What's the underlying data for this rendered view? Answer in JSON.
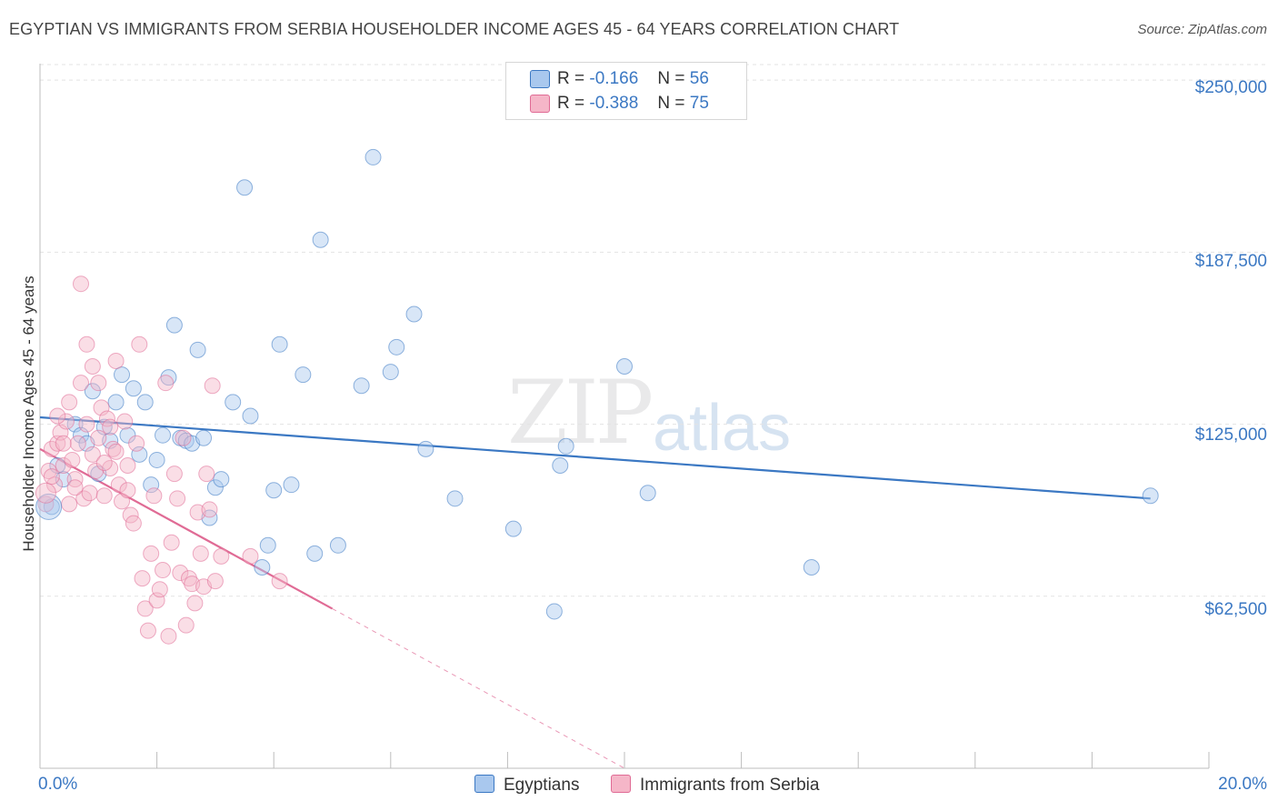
{
  "header": {
    "title": "EGYPTIAN VS IMMIGRANTS FROM SERBIA HOUSEHOLDER INCOME AGES 45 - 64 YEARS CORRELATION CHART",
    "source": "Source: ZipAtlas.com"
  },
  "watermark": {
    "zip": "ZIP",
    "atlas": "atlas"
  },
  "legend": {
    "rows": [
      {
        "r_label": "R =",
        "r_value": "-0.166",
        "n_label": "N =",
        "n_value": "56",
        "color": "#a9c8ee"
      },
      {
        "r_label": "R =",
        "r_value": "-0.388",
        "n_label": "N =",
        "n_value": "75",
        "color": "#f5b6c8"
      }
    ]
  },
  "bottom_legend": [
    {
      "label": "Egyptians",
      "color": "#a9c8ee"
    },
    {
      "label": "Immigrants from Serbia",
      "color": "#f5b6c8"
    }
  ],
  "axes": {
    "ylabel": "Householder Income Ages 45 - 64 years",
    "y_ticks": [
      "$250,000",
      "$187,500",
      "$125,000",
      "$62,500"
    ],
    "x_tick_left": "0.0%",
    "x_tick_right": "20.0%"
  },
  "chart_data": {
    "type": "scatter",
    "title": "EGYPTIAN VS IMMIGRANTS FROM SERBIA HOUSEHOLDER INCOME AGES 45 - 64 YEARS CORRELATION CHART",
    "xlabel": "",
    "ylabel": "Householder Income Ages 45 - 64 years",
    "xlim": [
      0,
      20
    ],
    "ylim": [
      0,
      256000
    ],
    "y_tick_values": [
      250000,
      187500,
      125000,
      62500
    ],
    "grid": true,
    "series": [
      {
        "name": "Egyptians",
        "color": "#3b78c3",
        "fill": "#a9c8ee",
        "R": -0.166,
        "N": 56,
        "trend": {
          "x": [
            0.0,
            19.0
          ],
          "y": [
            127500,
            98000
          ],
          "dashed_extension": false
        },
        "points": [
          [
            0.2,
            95000
          ],
          [
            0.4,
            105000
          ],
          [
            0.6,
            125000
          ],
          [
            0.7,
            121000
          ],
          [
            0.8,
            118000
          ],
          [
            0.9,
            137000
          ],
          [
            1.0,
            107000
          ],
          [
            1.1,
            124000
          ],
          [
            1.3,
            133000
          ],
          [
            1.4,
            143000
          ],
          [
            1.5,
            121000
          ],
          [
            1.6,
            138000
          ],
          [
            1.7,
            114000
          ],
          [
            1.8,
            133000
          ],
          [
            1.9,
            103000
          ],
          [
            2.0,
            112000
          ],
          [
            2.2,
            142000
          ],
          [
            2.3,
            161000
          ],
          [
            2.4,
            120000
          ],
          [
            2.5,
            119000
          ],
          [
            2.6,
            118000
          ],
          [
            2.7,
            152000
          ],
          [
            2.8,
            120000
          ],
          [
            2.9,
            91000
          ],
          [
            3.0,
            102000
          ],
          [
            3.1,
            105000
          ],
          [
            3.3,
            133000
          ],
          [
            3.5,
            211000
          ],
          [
            3.6,
            128000
          ],
          [
            3.8,
            73000
          ],
          [
            3.9,
            81000
          ],
          [
            4.0,
            101000
          ],
          [
            4.1,
            154000
          ],
          [
            4.3,
            103000
          ],
          [
            4.5,
            143000
          ],
          [
            4.7,
            78000
          ],
          [
            4.8,
            192000
          ],
          [
            5.1,
            81000
          ],
          [
            5.5,
            139000
          ],
          [
            5.7,
            222000
          ],
          [
            6.0,
            144000
          ],
          [
            6.1,
            153000
          ],
          [
            6.4,
            165000
          ],
          [
            6.6,
            116000
          ],
          [
            7.1,
            98000
          ],
          [
            8.1,
            87000
          ],
          [
            8.8,
            57000
          ],
          [
            8.9,
            110000
          ],
          [
            9.0,
            117000
          ],
          [
            10.0,
            146000
          ],
          [
            10.4,
            100000
          ],
          [
            13.2,
            73000
          ],
          [
            19.0,
            99000
          ],
          [
            0.3,
            110000
          ],
          [
            1.2,
            119000
          ],
          [
            2.1,
            121000
          ]
        ]
      },
      {
        "name": "Immigrants from Serbia",
        "color": "#e06b95",
        "fill": "#f5b6c8",
        "R": -0.388,
        "N": 75,
        "trend": {
          "x": [
            0.0,
            5.0
          ],
          "y": [
            116000,
            58000
          ],
          "dashed_extension": true,
          "dashed_to": {
            "x": 10.0,
            "y": 0
          }
        },
        "points": [
          [
            0.1,
            96000
          ],
          [
            0.15,
            108000
          ],
          [
            0.2,
            116000
          ],
          [
            0.25,
            103000
          ],
          [
            0.3,
            118000
          ],
          [
            0.35,
            122000
          ],
          [
            0.4,
            110000
          ],
          [
            0.45,
            126000
          ],
          [
            0.5,
            133000
          ],
          [
            0.55,
            112000
          ],
          [
            0.6,
            105000
          ],
          [
            0.65,
            118000
          ],
          [
            0.7,
            140000
          ],
          [
            0.75,
            98000
          ],
          [
            0.8,
            125000
          ],
          [
            0.85,
            100000
          ],
          [
            0.9,
            114000
          ],
          [
            0.95,
            108000
          ],
          [
            1.0,
            120000
          ],
          [
            1.05,
            131000
          ],
          [
            1.1,
            99000
          ],
          [
            1.15,
            127000
          ],
          [
            1.2,
            109000
          ],
          [
            1.25,
            116000
          ],
          [
            1.3,
            148000
          ],
          [
            1.35,
            103000
          ],
          [
            1.4,
            97000
          ],
          [
            1.45,
            126000
          ],
          [
            1.5,
            110000
          ],
          [
            1.55,
            92000
          ],
          [
            1.6,
            89000
          ],
          [
            1.65,
            118000
          ],
          [
            1.7,
            154000
          ],
          [
            1.75,
            69000
          ],
          [
            1.8,
            58000
          ],
          [
            1.85,
            50000
          ],
          [
            1.9,
            78000
          ],
          [
            1.95,
            99000
          ],
          [
            2.0,
            61000
          ],
          [
            2.05,
            65000
          ],
          [
            2.1,
            72000
          ],
          [
            2.15,
            140000
          ],
          [
            2.2,
            48000
          ],
          [
            2.25,
            82000
          ],
          [
            2.3,
            107000
          ],
          [
            2.35,
            98000
          ],
          [
            2.4,
            71000
          ],
          [
            2.45,
            120000
          ],
          [
            2.5,
            52000
          ],
          [
            2.55,
            69000
          ],
          [
            2.6,
            67000
          ],
          [
            2.65,
            60000
          ],
          [
            2.7,
            93000
          ],
          [
            2.75,
            78000
          ],
          [
            2.8,
            66000
          ],
          [
            2.85,
            107000
          ],
          [
            2.9,
            94000
          ],
          [
            2.95,
            139000
          ],
          [
            3.0,
            68000
          ],
          [
            3.1,
            77000
          ],
          [
            0.7,
            176000
          ],
          [
            0.8,
            154000
          ],
          [
            0.9,
            146000
          ],
          [
            1.0,
            140000
          ],
          [
            0.3,
            128000
          ],
          [
            0.4,
            118000
          ],
          [
            0.5,
            96000
          ],
          [
            0.6,
            102000
          ],
          [
            1.1,
            111000
          ],
          [
            1.2,
            124000
          ],
          [
            1.3,
            115000
          ],
          [
            1.5,
            101000
          ],
          [
            0.2,
            106000
          ],
          [
            4.1,
            68000
          ],
          [
            3.6,
            77000
          ]
        ]
      }
    ]
  }
}
